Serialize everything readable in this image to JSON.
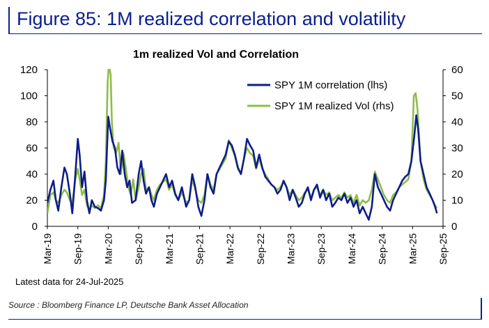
{
  "figure_title": "Figure 85: 1M realized correlation and volatility",
  "note": "Latest data for 24-Jul-2025",
  "source": "Source : Bloomberg Finance LP, Deutsche Bank Asset Allocation",
  "colors": {
    "brand": "#0a1e8c",
    "correlation": "#0d1d8a",
    "vol": "#8fbc4a"
  },
  "chart_data": {
    "type": "line",
    "title": "1m realized Vol and Correlation",
    "x_tick_labels": [
      "Mar-19",
      "Sep-19",
      "Mar-20",
      "Sep-20",
      "Mar-21",
      "Sep-21",
      "Mar-22",
      "Sep-22",
      "Mar-23",
      "Sep-23",
      "Mar-24",
      "Sep-24",
      "Mar-25",
      "Sep-25"
    ],
    "x_start": 2019.17,
    "x_end": 2025.67,
    "ylim_left": [
      0,
      120
    ],
    "yticks_left": [
      0,
      20,
      40,
      60,
      80,
      100,
      120
    ],
    "ylim_right": [
      0,
      60
    ],
    "yticks_right": [
      0,
      10,
      20,
      30,
      40,
      50,
      60
    ],
    "legend": {
      "position": "top-right"
    },
    "series": [
      {
        "name": "SPY 1M correlation (lhs)",
        "axis": "left",
        "points": [
          [
            2019.17,
            18
          ],
          [
            2019.22,
            28
          ],
          [
            2019.27,
            35
          ],
          [
            2019.31,
            20
          ],
          [
            2019.35,
            12
          ],
          [
            2019.4,
            30
          ],
          [
            2019.45,
            45
          ],
          [
            2019.49,
            40
          ],
          [
            2019.54,
            25
          ],
          [
            2019.58,
            10
          ],
          [
            2019.63,
            40
          ],
          [
            2019.67,
            67
          ],
          [
            2019.7,
            55
          ],
          [
            2019.74,
            30
          ],
          [
            2019.78,
            42
          ],
          [
            2019.82,
            20
          ],
          [
            2019.86,
            10
          ],
          [
            2019.9,
            20
          ],
          [
            2019.95,
            15
          ],
          [
            2020.0,
            14
          ],
          [
            2020.05,
            12
          ],
          [
            2020.1,
            20
          ],
          [
            2020.13,
            35
          ],
          [
            2020.17,
            84
          ],
          [
            2020.2,
            75
          ],
          [
            2020.24,
            65
          ],
          [
            2020.28,
            60
          ],
          [
            2020.32,
            45
          ],
          [
            2020.36,
            40
          ],
          [
            2020.4,
            58
          ],
          [
            2020.44,
            40
          ],
          [
            2020.48,
            30
          ],
          [
            2020.52,
            35
          ],
          [
            2020.56,
            18
          ],
          [
            2020.62,
            20
          ],
          [
            2020.67,
            40
          ],
          [
            2020.71,
            50
          ],
          [
            2020.75,
            35
          ],
          [
            2020.79,
            25
          ],
          [
            2020.84,
            30
          ],
          [
            2020.88,
            20
          ],
          [
            2020.92,
            15
          ],
          [
            2020.97,
            25
          ],
          [
            2021.02,
            30
          ],
          [
            2021.07,
            35
          ],
          [
            2021.12,
            40
          ],
          [
            2021.17,
            30
          ],
          [
            2021.22,
            35
          ],
          [
            2021.27,
            25
          ],
          [
            2021.32,
            20
          ],
          [
            2021.38,
            30
          ],
          [
            2021.45,
            15
          ],
          [
            2021.5,
            20
          ],
          [
            2021.55,
            40
          ],
          [
            2021.6,
            30
          ],
          [
            2021.65,
            15
          ],
          [
            2021.7,
            8
          ],
          [
            2021.75,
            20
          ],
          [
            2021.8,
            40
          ],
          [
            2021.85,
            30
          ],
          [
            2021.9,
            25
          ],
          [
            2021.95,
            40
          ],
          [
            2022.0,
            45
          ],
          [
            2022.05,
            50
          ],
          [
            2022.1,
            55
          ],
          [
            2022.15,
            65
          ],
          [
            2022.2,
            62
          ],
          [
            2022.25,
            55
          ],
          [
            2022.3,
            45
          ],
          [
            2022.35,
            40
          ],
          [
            2022.4,
            52
          ],
          [
            2022.45,
            67
          ],
          [
            2022.5,
            62
          ],
          [
            2022.55,
            58
          ],
          [
            2022.6,
            45
          ],
          [
            2022.65,
            55
          ],
          [
            2022.7,
            45
          ],
          [
            2022.75,
            38
          ],
          [
            2022.8,
            35
          ],
          [
            2022.85,
            32
          ],
          [
            2022.9,
            30
          ],
          [
            2022.95,
            25
          ],
          [
            2023.0,
            28
          ],
          [
            2023.05,
            35
          ],
          [
            2023.1,
            30
          ],
          [
            2023.15,
            20
          ],
          [
            2023.2,
            28
          ],
          [
            2023.25,
            22
          ],
          [
            2023.3,
            15
          ],
          [
            2023.35,
            18
          ],
          [
            2023.4,
            25
          ],
          [
            2023.45,
            30
          ],
          [
            2023.5,
            20
          ],
          [
            2023.55,
            28
          ],
          [
            2023.6,
            32
          ],
          [
            2023.65,
            22
          ],
          [
            2023.7,
            28
          ],
          [
            2023.75,
            20
          ],
          [
            2023.8,
            25
          ],
          [
            2023.85,
            15
          ],
          [
            2023.9,
            18
          ],
          [
            2023.95,
            22
          ],
          [
            2024.0,
            20
          ],
          [
            2024.05,
            25
          ],
          [
            2024.1,
            18
          ],
          [
            2024.15,
            22
          ],
          [
            2024.2,
            15
          ],
          [
            2024.25,
            20
          ],
          [
            2024.3,
            10
          ],
          [
            2024.35,
            15
          ],
          [
            2024.4,
            10
          ],
          [
            2024.45,
            5
          ],
          [
            2024.5,
            15
          ],
          [
            2024.55,
            40
          ],
          [
            2024.6,
            30
          ],
          [
            2024.65,
            25
          ],
          [
            2024.7,
            20
          ],
          [
            2024.75,
            15
          ],
          [
            2024.8,
            12
          ],
          [
            2024.85,
            20
          ],
          [
            2024.9,
            25
          ],
          [
            2024.95,
            30
          ],
          [
            2025.0,
            35
          ],
          [
            2025.05,
            38
          ],
          [
            2025.1,
            40
          ],
          [
            2025.15,
            50
          ],
          [
            2025.2,
            70
          ],
          [
            2025.23,
            85
          ],
          [
            2025.26,
            75
          ],
          [
            2025.3,
            50
          ],
          [
            2025.35,
            40
          ],
          [
            2025.4,
            30
          ],
          [
            2025.45,
            25
          ],
          [
            2025.5,
            20
          ],
          [
            2025.54,
            15
          ],
          [
            2025.57,
            10
          ]
        ]
      },
      {
        "name": "SPY 1M realized Vol (rhs)",
        "axis": "right",
        "points": [
          [
            2019.17,
            5
          ],
          [
            2019.22,
            12
          ],
          [
            2019.27,
            13
          ],
          [
            2019.31,
            10
          ],
          [
            2019.35,
            9
          ],
          [
            2019.4,
            12
          ],
          [
            2019.45,
            14
          ],
          [
            2019.49,
            13
          ],
          [
            2019.54,
            10
          ],
          [
            2019.58,
            9
          ],
          [
            2019.63,
            18
          ],
          [
            2019.67,
            22
          ],
          [
            2019.7,
            18
          ],
          [
            2019.74,
            12
          ],
          [
            2019.78,
            14
          ],
          [
            2019.82,
            8
          ],
          [
            2019.86,
            6
          ],
          [
            2019.9,
            8
          ],
          [
            2019.95,
            7
          ],
          [
            2020.0,
            8
          ],
          [
            2020.05,
            7
          ],
          [
            2020.1,
            12
          ],
          [
            2020.13,
            25
          ],
          [
            2020.16,
            55
          ],
          [
            2020.18,
            62
          ],
          [
            2020.21,
            58
          ],
          [
            2020.23,
            40
          ],
          [
            2020.26,
            30
          ],
          [
            2020.3,
            28
          ],
          [
            2020.34,
            32
          ],
          [
            2020.38,
            20
          ],
          [
            2020.42,
            28
          ],
          [
            2020.46,
            22
          ],
          [
            2020.5,
            15
          ],
          [
            2020.54,
            12
          ],
          [
            2020.58,
            18
          ],
          [
            2020.62,
            10
          ],
          [
            2020.67,
            15
          ],
          [
            2020.71,
            20
          ],
          [
            2020.75,
            22
          ],
          [
            2020.79,
            14
          ],
          [
            2020.84,
            15
          ],
          [
            2020.88,
            12
          ],
          [
            2020.92,
            10
          ],
          [
            2020.97,
            14
          ],
          [
            2021.02,
            16
          ],
          [
            2021.07,
            17
          ],
          [
            2021.12,
            18
          ],
          [
            2021.17,
            14
          ],
          [
            2021.22,
            16
          ],
          [
            2021.27,
            12
          ],
          [
            2021.32,
            10
          ],
          [
            2021.38,
            13
          ],
          [
            2021.45,
            9
          ],
          [
            2021.5,
            10
          ],
          [
            2021.55,
            18
          ],
          [
            2021.6,
            14
          ],
          [
            2021.65,
            10
          ],
          [
            2021.7,
            9
          ],
          [
            2021.75,
            12
          ],
          [
            2021.8,
            20
          ],
          [
            2021.85,
            16
          ],
          [
            2021.9,
            14
          ],
          [
            2021.95,
            20
          ],
          [
            2022.0,
            22
          ],
          [
            2022.05,
            24
          ],
          [
            2022.1,
            26
          ],
          [
            2022.15,
            33
          ],
          [
            2022.2,
            30
          ],
          [
            2022.25,
            27
          ],
          [
            2022.3,
            22
          ],
          [
            2022.35,
            20
          ],
          [
            2022.4,
            26
          ],
          [
            2022.45,
            30
          ],
          [
            2022.5,
            28
          ],
          [
            2022.55,
            27
          ],
          [
            2022.6,
            22
          ],
          [
            2022.65,
            26
          ],
          [
            2022.7,
            22
          ],
          [
            2022.75,
            20
          ],
          [
            2022.8,
            18
          ],
          [
            2022.85,
            16
          ],
          [
            2022.9,
            15
          ],
          [
            2022.95,
            14
          ],
          [
            2023.0,
            15
          ],
          [
            2023.05,
            17
          ],
          [
            2023.1,
            15
          ],
          [
            2023.15,
            12
          ],
          [
            2023.2,
            14
          ],
          [
            2023.25,
            12
          ],
          [
            2023.3,
            10
          ],
          [
            2023.35,
            11
          ],
          [
            2023.4,
            13
          ],
          [
            2023.45,
            14
          ],
          [
            2023.5,
            11
          ],
          [
            2023.55,
            14
          ],
          [
            2023.6,
            15
          ],
          [
            2023.65,
            12
          ],
          [
            2023.7,
            14
          ],
          [
            2023.75,
            12
          ],
          [
            2023.8,
            13
          ],
          [
            2023.85,
            10
          ],
          [
            2023.9,
            11
          ],
          [
            2023.95,
            12
          ],
          [
            2024.0,
            11
          ],
          [
            2024.05,
            13
          ],
          [
            2024.1,
            11
          ],
          [
            2024.15,
            12
          ],
          [
            2024.2,
            9
          ],
          [
            2024.25,
            12
          ],
          [
            2024.3,
            8
          ],
          [
            2024.35,
            10
          ],
          [
            2024.4,
            9
          ],
          [
            2024.45,
            10
          ],
          [
            2024.5,
            14
          ],
          [
            2024.55,
            21
          ],
          [
            2024.6,
            18
          ],
          [
            2024.65,
            15
          ],
          [
            2024.7,
            12
          ],
          [
            2024.75,
            10
          ],
          [
            2024.8,
            9
          ],
          [
            2024.85,
            12
          ],
          [
            2024.9,
            13
          ],
          [
            2024.95,
            15
          ],
          [
            2025.0,
            16
          ],
          [
            2025.05,
            17
          ],
          [
            2025.1,
            18
          ],
          [
            2025.15,
            25
          ],
          [
            2025.19,
            50
          ],
          [
            2025.22,
            51
          ],
          [
            2025.25,
            45
          ],
          [
            2025.3,
            25
          ],
          [
            2025.35,
            18
          ],
          [
            2025.4,
            14
          ],
          [
            2025.45,
            12
          ],
          [
            2025.5,
            10
          ],
          [
            2025.54,
            8
          ],
          [
            2025.57,
            7
          ]
        ]
      }
    ]
  }
}
